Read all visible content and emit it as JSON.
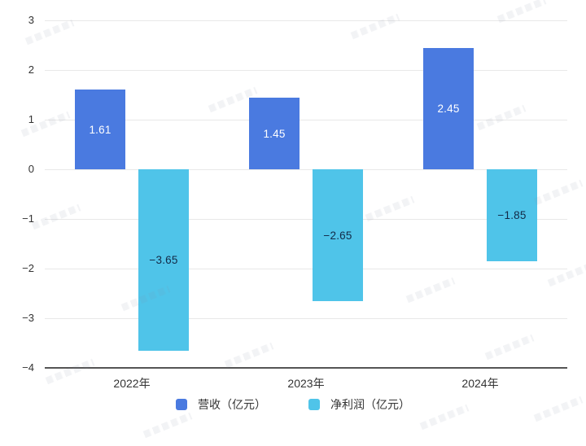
{
  "chart_data": {
    "type": "bar",
    "title": "",
    "categories": [
      "2022年",
      "2023年",
      "2024年"
    ],
    "series": [
      {
        "name": "营收（亿元）",
        "color": "#4a7ae0",
        "label_color": "#ffffff",
        "values": [
          1.61,
          1.45,
          2.45
        ],
        "labels": [
          "1.61",
          "1.45",
          "2.45"
        ]
      },
      {
        "name": "净利润（亿元）",
        "color": "#4fc4e9",
        "label_color": "#132a47",
        "values": [
          -3.65,
          -2.65,
          -1.85
        ],
        "labels": [
          "−3.65",
          "−2.65",
          "−1.85"
        ]
      }
    ],
    "y_axis": {
      "min": -4,
      "max": 3,
      "ticks": [
        3,
        2,
        1,
        0,
        -1,
        -2,
        -3,
        -4
      ],
      "tick_labels": [
        "3",
        "2",
        "1",
        "0",
        "−1",
        "−2",
        "−3",
        "−4"
      ]
    },
    "grid": true,
    "legend_position": "bottom",
    "colors": {
      "gridline": "#e8e8e8",
      "axis_line": "#555555",
      "tick_text": "#333333",
      "category_text": "#333333",
      "legend_text": "#333333",
      "background": "#ffffff"
    }
  }
}
